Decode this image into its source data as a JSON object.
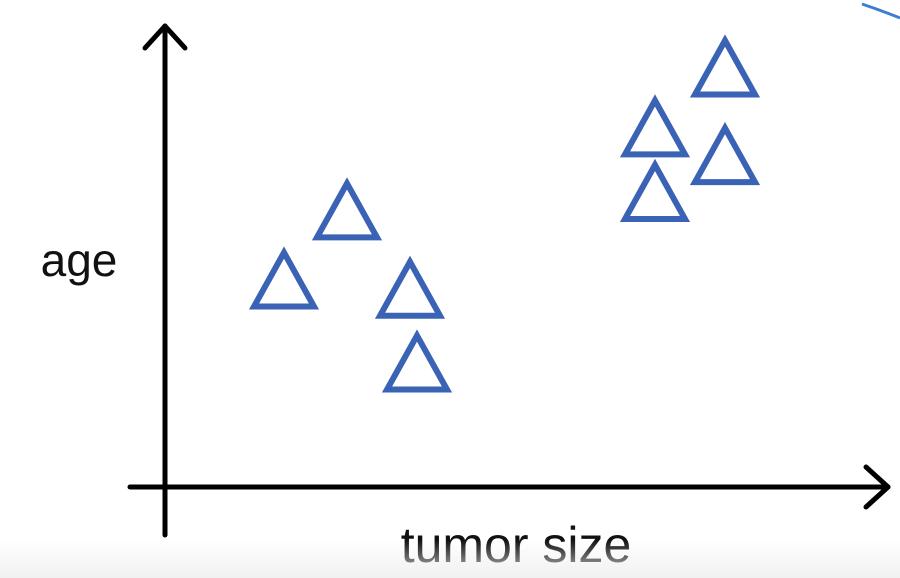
{
  "colors": {
    "axis": "#000000",
    "marker": "#3a63b5",
    "corner_arc": "#3a7fd0"
  },
  "chart_data": {
    "type": "scatter",
    "marker": "triangle",
    "xlabel": "tumor size",
    "ylabel": "age",
    "grid": false,
    "legend": "none",
    "xlim": [
      0,
      10
    ],
    "ylim": [
      0,
      10
    ],
    "series": [
      {
        "points": [
          {
            "x": 1.7,
            "y": 4.5
          },
          {
            "x": 2.6,
            "y": 6.0
          },
          {
            "x": 3.5,
            "y": 4.3
          },
          {
            "x": 3.6,
            "y": 2.7
          },
          {
            "x": 7.0,
            "y": 7.8
          },
          {
            "x": 7.0,
            "y": 6.4
          },
          {
            "x": 8.0,
            "y": 9.1
          },
          {
            "x": 8.0,
            "y": 7.2
          }
        ]
      }
    ]
  }
}
